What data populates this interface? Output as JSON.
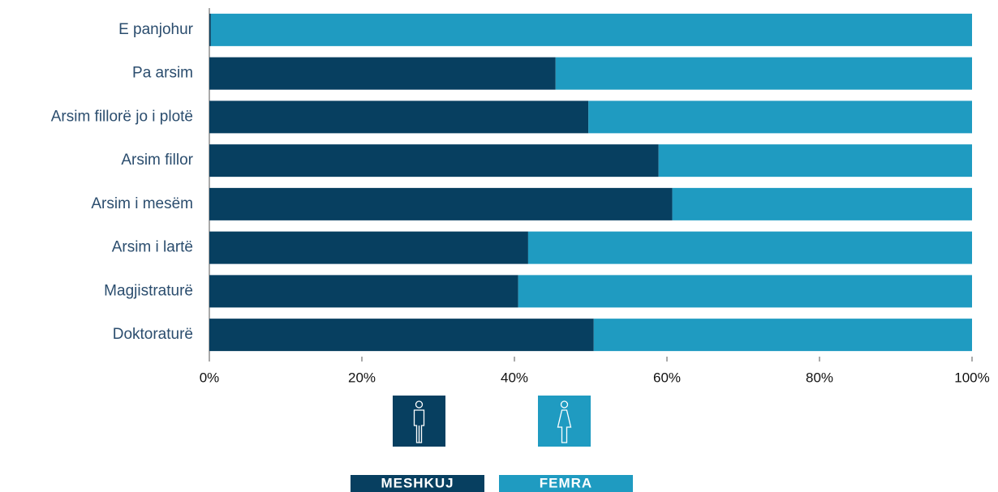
{
  "chart_data": {
    "type": "stacked-bar-horizontal",
    "categories": [
      "E panjohur",
      "Pa arsim",
      "Arsim fillorë jo i plotë",
      "Arsim fillor",
      "Arsim i mesëm",
      "Arsim i lartë",
      "Magjistraturë",
      "Doktoraturë"
    ],
    "series": [
      {
        "name": "MESHKUJ",
        "color": "#073f60",
        "values": [
          0.2,
          45.4,
          49.7,
          58.9,
          60.7,
          41.8,
          40.5,
          50.4
        ]
      },
      {
        "name": "FEMRA",
        "color": "#1f9bc1",
        "values": [
          99.8,
          54.6,
          50.3,
          41.1,
          39.3,
          58.2,
          59.5,
          49.6
        ]
      }
    ],
    "xlim": [
      0,
      100
    ],
    "xticks": [
      {
        "value": 0,
        "label": "0%"
      },
      {
        "value": 20,
        "label": "20%"
      },
      {
        "value": 40,
        "label": "40%"
      },
      {
        "value": 60,
        "label": "60%"
      },
      {
        "value": 80,
        "label": "80%"
      },
      {
        "value": 100,
        "label": "100%"
      }
    ],
    "legend": "bottom"
  }
}
